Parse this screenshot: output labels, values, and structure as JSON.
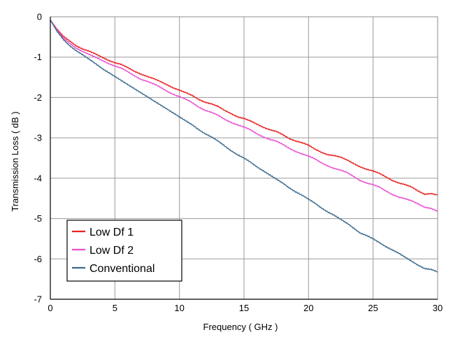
{
  "chart_data": {
    "type": "line",
    "title": "",
    "xlabel": "Frequency ( GHz )",
    "ylabel": "Transmission Loss ( dB )",
    "xlim": [
      0,
      30
    ],
    "ylim": [
      -7,
      0
    ],
    "x_ticks": [
      0,
      5,
      10,
      15,
      20,
      25,
      30
    ],
    "y_ticks": [
      0,
      -1,
      -2,
      -3,
      -4,
      -5,
      -6,
      -7
    ],
    "x_tick_labels": [
      "0",
      "5",
      "10",
      "15",
      "20",
      "25",
      "30"
    ],
    "y_tick_labels": [
      "0",
      "-1",
      "-2",
      "-3",
      "-4",
      "-5",
      "-6",
      "-7"
    ],
    "grid": true,
    "legend_position": "bottom-left",
    "series": [
      {
        "name": "Low Df 1",
        "color": "#e8211f",
        "x": [
          0,
          0.5,
          1,
          1.5,
          2,
          2.5,
          3,
          3.5,
          4,
          4.5,
          5,
          5.5,
          6,
          6.5,
          7,
          7.5,
          8,
          8.5,
          9,
          9.5,
          10,
          10.5,
          11,
          11.5,
          12,
          12.5,
          13,
          13.5,
          14,
          14.5,
          15,
          15.5,
          16,
          16.5,
          17,
          17.5,
          18,
          18.5,
          19,
          19.5,
          20,
          20.5,
          21,
          21.5,
          22,
          22.5,
          23,
          23.5,
          24,
          24.5,
          25,
          25.5,
          26,
          26.5,
          27,
          27.5,
          28,
          28.5,
          29,
          29.5,
          30
        ],
        "values": [
          -0.08,
          -0.3,
          -0.48,
          -0.6,
          -0.72,
          -0.8,
          -0.85,
          -0.92,
          -1.0,
          -1.08,
          -1.14,
          -1.18,
          -1.26,
          -1.35,
          -1.42,
          -1.48,
          -1.53,
          -1.6,
          -1.68,
          -1.76,
          -1.82,
          -1.88,
          -1.95,
          -2.05,
          -2.12,
          -2.16,
          -2.22,
          -2.32,
          -2.4,
          -2.48,
          -2.52,
          -2.58,
          -2.66,
          -2.74,
          -2.8,
          -2.84,
          -2.92,
          -3.02,
          -3.08,
          -3.12,
          -3.18,
          -3.28,
          -3.36,
          -3.42,
          -3.44,
          -3.48,
          -3.55,
          -3.64,
          -3.72,
          -3.78,
          -3.82,
          -3.88,
          -3.97,
          -4.06,
          -4.12,
          -4.16,
          -4.22,
          -4.32,
          -4.4,
          -4.38,
          -4.42
        ]
      },
      {
        "name": "Low Df 2",
        "color": "#e84fd2",
        "x": [
          0,
          0.5,
          1,
          1.5,
          2,
          2.5,
          3,
          3.5,
          4,
          4.5,
          5,
          5.5,
          6,
          6.5,
          7,
          7.5,
          8,
          8.5,
          9,
          9.5,
          10,
          10.5,
          11,
          11.5,
          12,
          12.5,
          13,
          13.5,
          14,
          14.5,
          15,
          15.5,
          16,
          16.5,
          17,
          17.5,
          18,
          18.5,
          19,
          19.5,
          20,
          20.5,
          21,
          21.5,
          22,
          22.5,
          23,
          23.5,
          24,
          24.5,
          25,
          25.5,
          26,
          26.5,
          27,
          27.5,
          28,
          28.5,
          29,
          29.5,
          30
        ],
        "values": [
          -0.08,
          -0.32,
          -0.52,
          -0.66,
          -0.78,
          -0.86,
          -0.93,
          -1.0,
          -1.08,
          -1.16,
          -1.22,
          -1.27,
          -1.36,
          -1.46,
          -1.55,
          -1.6,
          -1.66,
          -1.74,
          -1.84,
          -1.92,
          -1.98,
          -2.04,
          -2.13,
          -2.24,
          -2.32,
          -2.37,
          -2.44,
          -2.54,
          -2.62,
          -2.68,
          -2.73,
          -2.8,
          -2.9,
          -2.98,
          -3.04,
          -3.08,
          -3.16,
          -3.26,
          -3.34,
          -3.4,
          -3.45,
          -3.52,
          -3.62,
          -3.7,
          -3.76,
          -3.8,
          -3.86,
          -3.96,
          -4.06,
          -4.12,
          -4.16,
          -4.22,
          -4.32,
          -4.41,
          -4.47,
          -4.51,
          -4.56,
          -4.64,
          -4.72,
          -4.75,
          -4.82
        ]
      },
      {
        "name": "Conventional",
        "color": "#3b6a8c",
        "x": [
          0,
          0.5,
          1,
          1.5,
          2,
          2.5,
          3,
          3.5,
          4,
          4.5,
          5,
          5.5,
          6,
          6.5,
          7,
          7.5,
          8,
          8.5,
          9,
          9.5,
          10,
          10.5,
          11,
          11.5,
          12,
          12.5,
          13,
          13.5,
          14,
          14.5,
          15,
          15.5,
          16,
          16.5,
          17,
          17.5,
          18,
          18.5,
          19,
          19.5,
          20,
          20.5,
          21,
          21.5,
          22,
          22.5,
          23,
          23.5,
          24,
          24.5,
          25,
          25.5,
          26,
          26.5,
          27,
          27.5,
          28,
          28.5,
          29,
          29.5,
          30
        ],
        "values": [
          -0.08,
          -0.35,
          -0.56,
          -0.72,
          -0.84,
          -0.94,
          -1.05,
          -1.16,
          -1.28,
          -1.38,
          -1.48,
          -1.58,
          -1.68,
          -1.78,
          -1.88,
          -1.98,
          -2.08,
          -2.18,
          -2.28,
          -2.38,
          -2.48,
          -2.58,
          -2.68,
          -2.8,
          -2.9,
          -2.98,
          -3.08,
          -3.2,
          -3.32,
          -3.42,
          -3.5,
          -3.6,
          -3.72,
          -3.82,
          -3.92,
          -4.02,
          -4.12,
          -4.24,
          -4.34,
          -4.42,
          -4.52,
          -4.62,
          -4.74,
          -4.84,
          -4.92,
          -5.02,
          -5.12,
          -5.24,
          -5.36,
          -5.42,
          -5.5,
          -5.6,
          -5.7,
          -5.78,
          -5.86,
          -5.96,
          -6.06,
          -6.16,
          -6.24,
          -6.26,
          -6.32
        ]
      }
    ]
  }
}
